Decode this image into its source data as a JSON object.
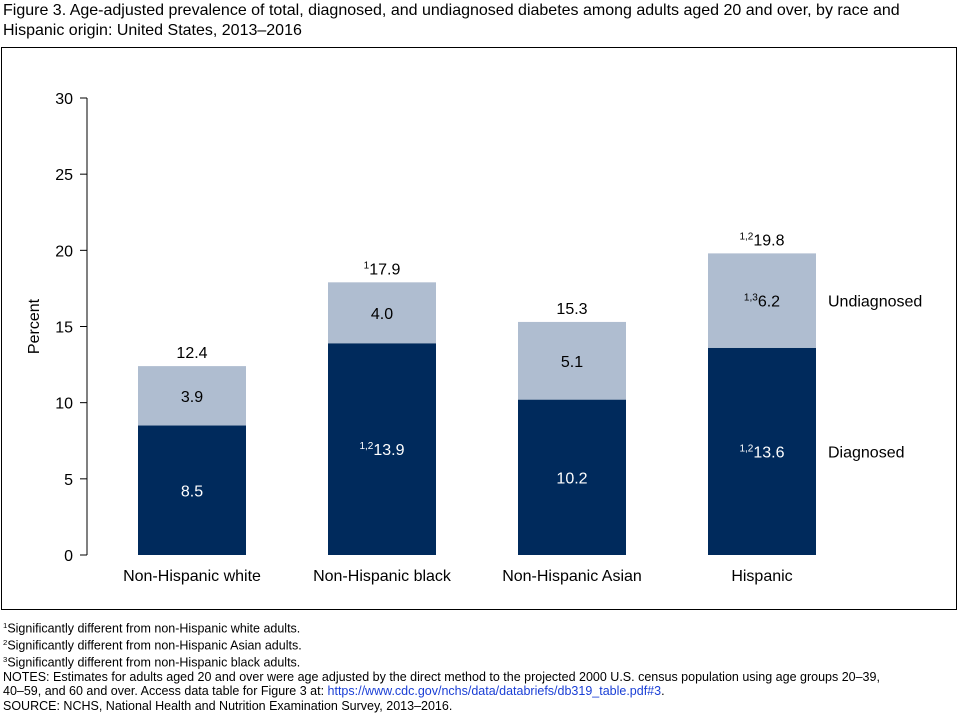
{
  "title": "Figure 3. Age-adjusted prevalence of total, diagnosed, and undiagnosed diabetes among adults aged 20 and over, by race and Hispanic origin: United States, 2013–2016",
  "chart_data": {
    "type": "bar",
    "stacked": true,
    "categories": [
      "Non-Hispanic white",
      "Non-Hispanic black",
      "Non-Hispanic Asian",
      "Hispanic"
    ],
    "series": [
      {
        "name": "Diagnosed",
        "values": [
          8.5,
          13.9,
          10.2,
          13.6
        ],
        "labels": [
          "8.5",
          "13.9",
          "10.2",
          "13.6"
        ],
        "label_sups": [
          "",
          "1,2",
          "",
          "1,2"
        ]
      },
      {
        "name": "Undiagnosed",
        "values": [
          3.9,
          4.0,
          5.1,
          6.2
        ],
        "labels": [
          "3.9",
          "4.0",
          "5.1",
          "6.2"
        ],
        "label_sups": [
          "",
          "",
          "",
          "1,3"
        ]
      }
    ],
    "totals": [
      12.4,
      17.9,
      15.3,
      19.8
    ],
    "total_labels": [
      "12.4",
      "17.9",
      "15.3",
      "19.8"
    ],
    "total_sups": [
      "",
      "1",
      "",
      "1,2"
    ],
    "ylabel": "Percent",
    "ylim": [
      0,
      30
    ],
    "yticks": [
      "0",
      "5",
      "10",
      "15",
      "20",
      "25",
      "30"
    ],
    "legend_placement": "right, beside last bar",
    "grid": false,
    "colors": {
      "diagnosed": "#002a5c",
      "undiagnosed": "#afbdd0"
    }
  },
  "footnotes": [
    {
      "sup": "1",
      "text": "Significantly different from non-Hispanic white adults."
    },
    {
      "sup": "2",
      "text": "Significantly different from non-Hispanic Asian adults."
    },
    {
      "sup": "3",
      "text": "Significantly different from non-Hispanic black adults."
    }
  ],
  "notes": {
    "line1": "NOTES: Estimates for adults aged 20 and over were age adjusted by the direct method to the projected 2000 U.S. census population using age groups 20–39,",
    "line2_prefix": "40–59, and 60 and over. Access data table for Figure 3 at: ",
    "link": "https://www.cdc.gov/nchs/data/databriefs/db319_table.pdf#3",
    "line2_suffix": "."
  },
  "source": "SOURCE: NCHS, National Health and Nutrition Examination Survey, 2013–2016."
}
